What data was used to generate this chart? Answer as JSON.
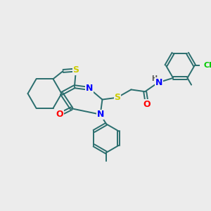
{
  "bg_color": "#ececec",
  "atom_colors": {
    "S": "#cccc00",
    "N": "#0000ff",
    "O": "#ff0000",
    "Cl": "#00cc00",
    "C": "#2a6e6e",
    "H": "#555555"
  },
  "bond_color": "#2a6e6e",
  "bond_width": 1.4,
  "font_size_atom": 9
}
